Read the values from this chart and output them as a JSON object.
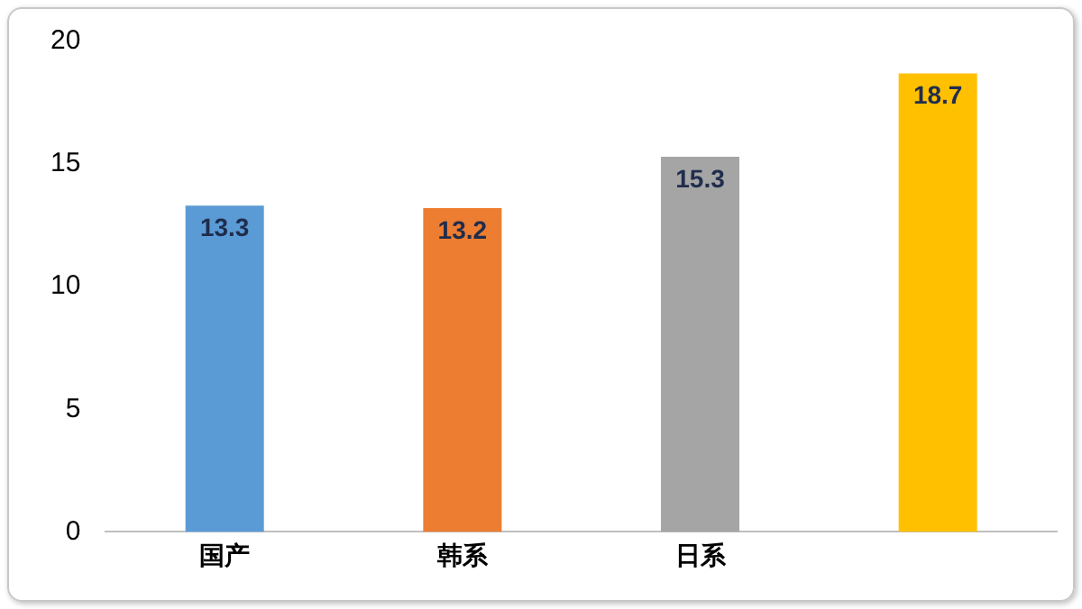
{
  "chart_data": {
    "type": "bar",
    "categories": [
      "国产",
      "韩系",
      "日系",
      null
    ],
    "values": [
      13.3,
      13.2,
      15.3,
      18.7
    ],
    "colors": [
      "#5b9bd5",
      "#ed7d31",
      "#a5a5a5",
      "#ffc000"
    ],
    "ylim": [
      0,
      20
    ],
    "yticks": [
      0,
      5,
      10,
      15,
      20
    ],
    "grid": false,
    "legend": false,
    "data_labels": true
  }
}
